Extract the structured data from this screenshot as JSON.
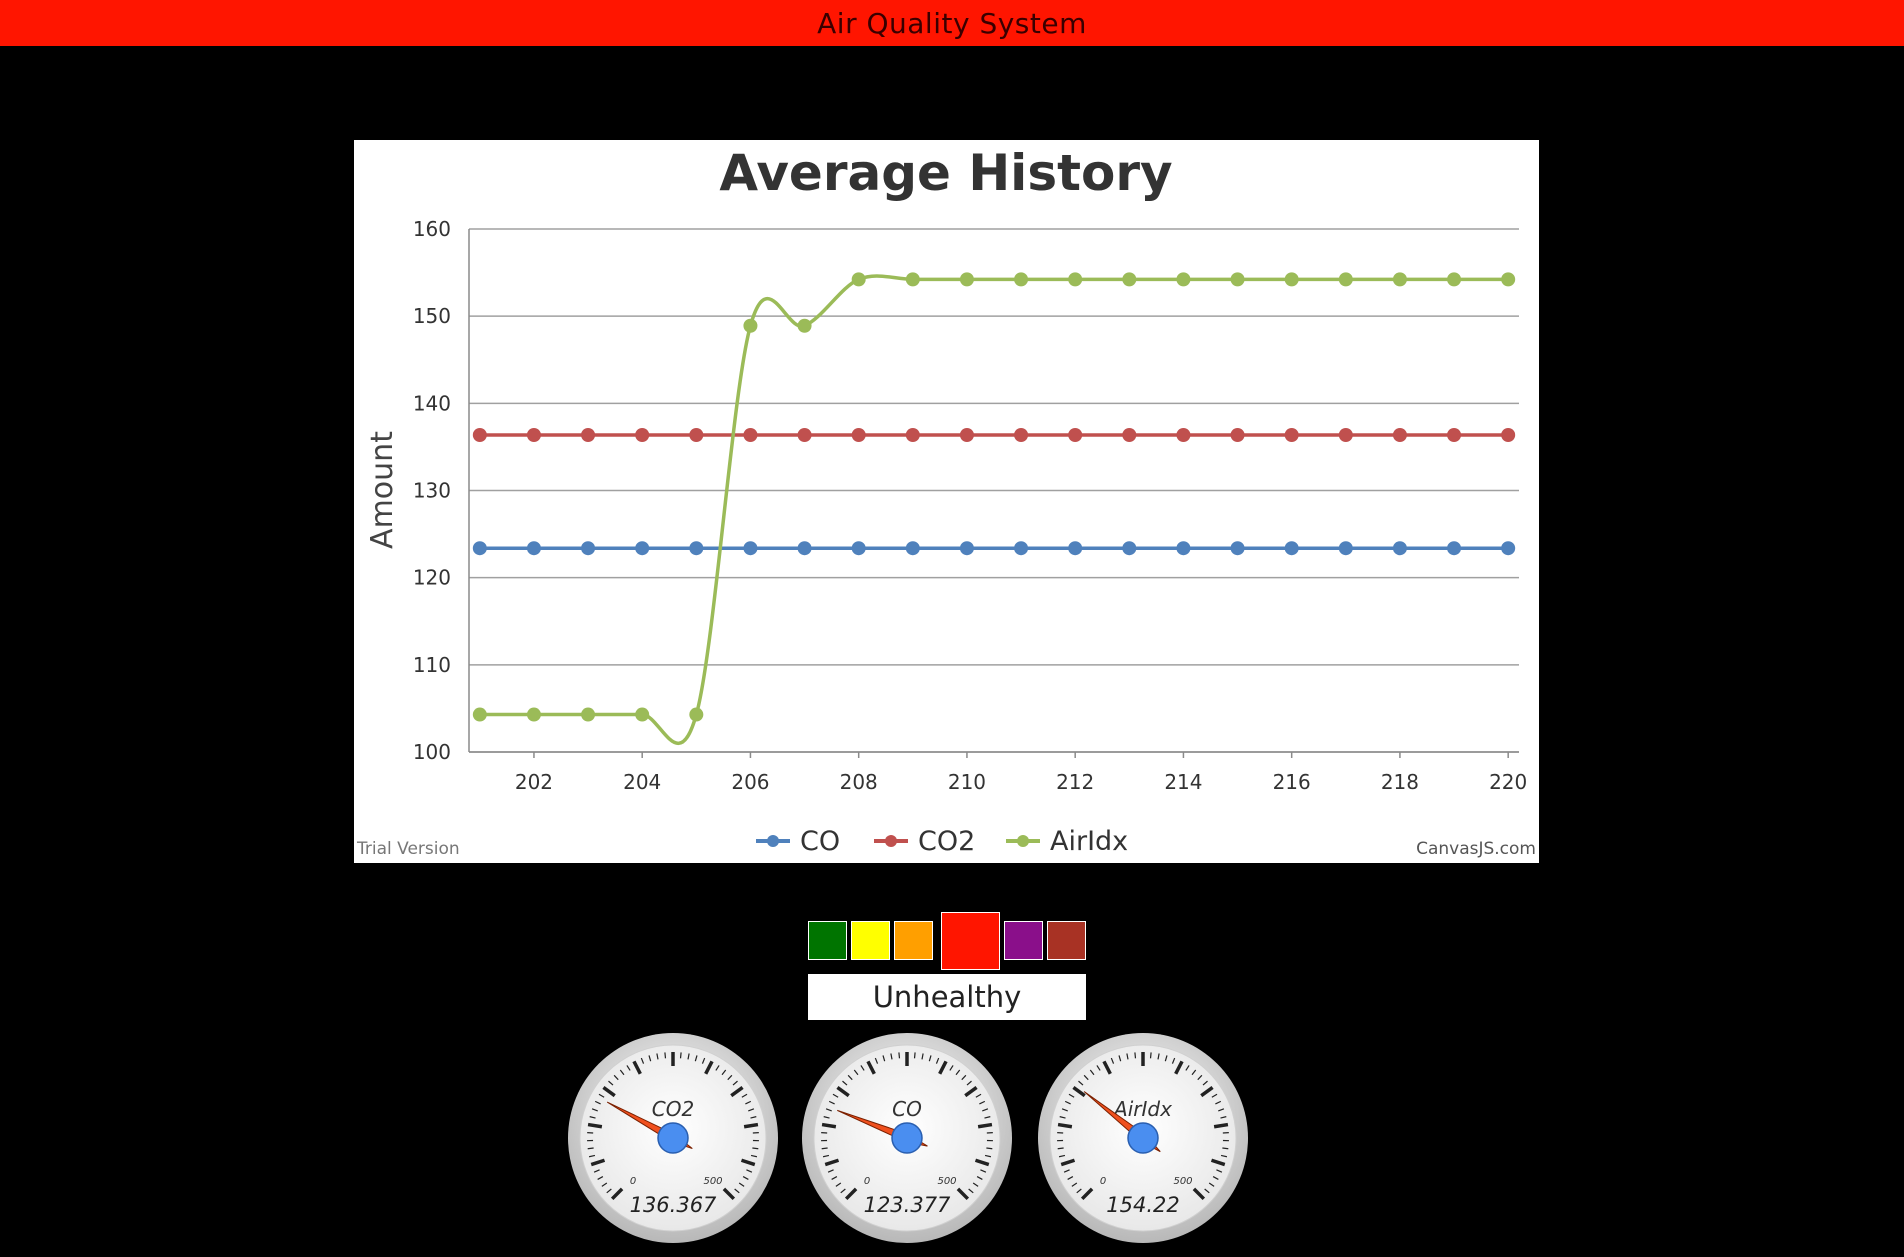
{
  "header": {
    "title": "Air Quality System"
  },
  "chart_data": {
    "type": "line",
    "title": "Average History",
    "ylabel": "Amount",
    "xlabel": "",
    "xlim": [
      200.8,
      220.2
    ],
    "ylim": [
      100,
      160
    ],
    "yticks": [
      100,
      110,
      120,
      130,
      140,
      150,
      160
    ],
    "xticks": [
      202,
      204,
      206,
      208,
      210,
      212,
      214,
      216,
      218,
      220
    ],
    "x": [
      201,
      202,
      203,
      204,
      205,
      206,
      207,
      208,
      209,
      210,
      211,
      212,
      213,
      214,
      215,
      216,
      217,
      218,
      219,
      220
    ],
    "grid": true,
    "legend": "bottom",
    "series": [
      {
        "name": "CO",
        "color": "#4f81bc",
        "values": [
          123.377,
          123.377,
          123.377,
          123.377,
          123.377,
          123.377,
          123.377,
          123.377,
          123.377,
          123.377,
          123.377,
          123.377,
          123.377,
          123.377,
          123.377,
          123.377,
          123.377,
          123.377,
          123.377,
          123.377
        ]
      },
      {
        "name": "CO2",
        "color": "#c0504e",
        "values": [
          136.367,
          136.367,
          136.367,
          136.367,
          136.367,
          136.367,
          136.367,
          136.367,
          136.367,
          136.367,
          136.367,
          136.367,
          136.367,
          136.367,
          136.367,
          136.367,
          136.367,
          136.367,
          136.367,
          136.367
        ]
      },
      {
        "name": "AirIdx",
        "color": "#9bbb58",
        "values": [
          104.3,
          104.3,
          104.3,
          104.3,
          104.3,
          148.9,
          148.9,
          154.22,
          154.22,
          154.22,
          154.22,
          154.22,
          154.22,
          154.22,
          154.22,
          154.22,
          154.22,
          154.22,
          154.22,
          154.22
        ]
      }
    ],
    "watermark_left": "Trial Version",
    "watermark_right": "CanvasJS.com"
  },
  "aqi_scale": {
    "colors": [
      "#007400",
      "#ffff00",
      "#ff9f00",
      "#ff1500",
      "#8a0f8a",
      "#a83224"
    ],
    "selected_index": 3,
    "status": "Unhealthy"
  },
  "gauges": [
    {
      "label": "CO2",
      "value": "136.367",
      "numeric": 136.367,
      "min": "0",
      "max": "500"
    },
    {
      "label": "CO",
      "value": "123.377",
      "numeric": 123.377,
      "min": "0",
      "max": "500"
    },
    {
      "label": "AirIdx",
      "value": "154.22",
      "numeric": 154.22,
      "min": "0",
      "max": "500"
    }
  ]
}
